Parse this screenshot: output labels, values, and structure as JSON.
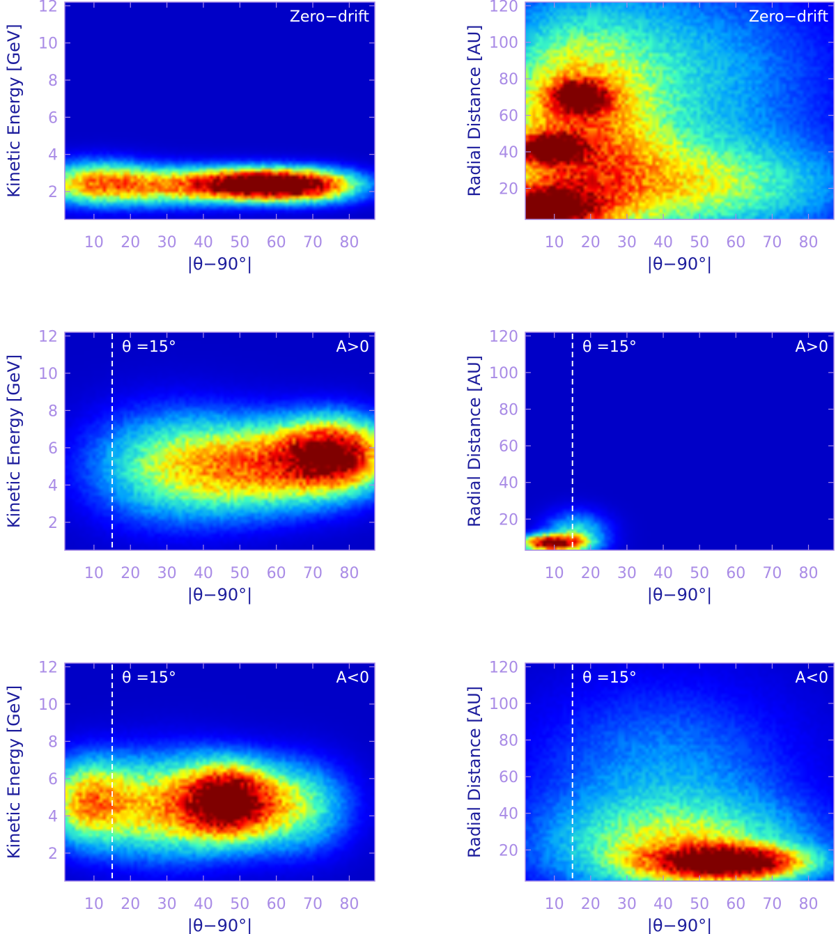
{
  "figure": {
    "colormap": [
      "#00007f",
      "#0000ff",
      "#00a0ff",
      "#40ffbf",
      "#ffff00",
      "#ff8000",
      "#ff0000",
      "#7f0000"
    ],
    "label_color": "#1c1c9c",
    "tick_color": "#a98be6",
    "marker_color": "#ffffff"
  },
  "chart_data": [
    {
      "type": "heatmap",
      "panel": "energy-zero-drift",
      "top_right": "Zero−drift",
      "top_left": "",
      "xlabel": "|θ−90°|",
      "ylabel": "Kinetic Energy [GeV]",
      "xlim": [
        2,
        87
      ],
      "ylim": [
        0.5,
        12.2
      ],
      "xticks": [
        10,
        20,
        30,
        40,
        50,
        60,
        70,
        80
      ],
      "yticks": [
        2,
        4,
        6,
        8,
        10,
        12
      ],
      "marker_x": null,
      "peaks": [
        {
          "x": 55,
          "y": 2.4,
          "amp": 1.0,
          "sx": 12,
          "sy": 0.55
        },
        {
          "x": 30,
          "y": 2.3,
          "amp": 0.55,
          "sx": 18,
          "sy": 0.7
        },
        {
          "x": 10,
          "y": 2.5,
          "amp": 0.45,
          "sx": 10,
          "sy": 0.8
        },
        {
          "x": 70,
          "y": 2.3,
          "amp": 0.6,
          "sx": 10,
          "sy": 0.6
        }
      ]
    },
    {
      "type": "heatmap",
      "panel": "radius-zero-drift",
      "top_right": "Zero−drift",
      "top_left": "",
      "xlabel": "|θ−90°|",
      "ylabel": "Radial Distance [AU]",
      "xlim": [
        2,
        87
      ],
      "ylim": [
        3,
        122
      ],
      "xticks": [
        10,
        20,
        30,
        40,
        50,
        60,
        70,
        80
      ],
      "yticks": [
        20,
        40,
        60,
        80,
        100,
        120
      ],
      "marker_x": null,
      "peaks": [
        {
          "x": 6,
          "y": 8,
          "amp": 1.0,
          "sx": 10,
          "sy": 8
        },
        {
          "x": 8,
          "y": 42,
          "amp": 0.85,
          "sx": 6,
          "sy": 5
        },
        {
          "x": 17,
          "y": 70,
          "amp": 0.75,
          "sx": 5,
          "sy": 6
        },
        {
          "x": 15,
          "y": 50,
          "amp": 0.55,
          "sx": 15,
          "sy": 40
        },
        {
          "x": 45,
          "y": 20,
          "amp": 0.45,
          "sx": 30,
          "sy": 18
        },
        {
          "x": 40,
          "y": 80,
          "amp": 0.3,
          "sx": 30,
          "sy": 40
        }
      ]
    },
    {
      "type": "heatmap",
      "panel": "energy-a-positive",
      "top_right": "A>0",
      "top_left": "θ  =15°",
      "xlabel": "|θ−90°|",
      "ylabel": "Kinetic Energy [GeV]",
      "xlim": [
        2,
        87
      ],
      "ylim": [
        0.5,
        12.2
      ],
      "xticks": [
        10,
        20,
        30,
        40,
        50,
        60,
        70,
        80
      ],
      "yticks": [
        2,
        4,
        6,
        8,
        10,
        12
      ],
      "marker_x": 15,
      "peaks": [
        {
          "x": 76,
          "y": 5.6,
          "amp": 1.0,
          "sx": 10,
          "sy": 1.3
        },
        {
          "x": 55,
          "y": 5.0,
          "amp": 0.6,
          "sx": 15,
          "sy": 1.6
        },
        {
          "x": 30,
          "y": 5.0,
          "amp": 0.4,
          "sx": 15,
          "sy": 2.0
        }
      ]
    },
    {
      "type": "heatmap",
      "panel": "radius-a-positive",
      "top_right": "A>0",
      "top_left": "θ  =15°",
      "xlabel": "|θ−90°|",
      "ylabel": "Radial Distance [AU]",
      "xlim": [
        2,
        87
      ],
      "ylim": [
        3,
        122
      ],
      "xticks": [
        10,
        20,
        30,
        40,
        50,
        60,
        70,
        80
      ],
      "yticks": [
        20,
        40,
        60,
        80,
        100,
        120
      ],
      "marker_x": 15,
      "peaks": [
        {
          "x": 9,
          "y": 7,
          "amp": 1.0,
          "sx": 6,
          "sy": 3
        },
        {
          "x": 16,
          "y": 12,
          "amp": 0.35,
          "sx": 6,
          "sy": 8
        }
      ]
    },
    {
      "type": "heatmap",
      "panel": "energy-a-negative",
      "top_right": "A<0",
      "top_left": "θ  =15°",
      "xlabel": "|θ−90°|",
      "ylabel": "Kinetic Energy [GeV]",
      "xlim": [
        2,
        87
      ],
      "ylim": [
        0.5,
        12.2
      ],
      "xticks": [
        10,
        20,
        30,
        40,
        50,
        60,
        70,
        80
      ],
      "yticks": [
        2,
        4,
        6,
        8,
        10,
        12
      ],
      "marker_x": 15,
      "peaks": [
        {
          "x": 47,
          "y": 4.8,
          "amp": 1.0,
          "sx": 8,
          "sy": 1.3
        },
        {
          "x": 30,
          "y": 4.5,
          "amp": 0.6,
          "sx": 14,
          "sy": 1.8
        },
        {
          "x": 8,
          "y": 4.8,
          "amp": 0.55,
          "sx": 8,
          "sy": 1.5
        },
        {
          "x": 65,
          "y": 4.5,
          "amp": 0.45,
          "sx": 10,
          "sy": 1.6
        }
      ]
    },
    {
      "type": "heatmap",
      "panel": "radius-a-negative",
      "top_right": "A<0",
      "top_left": "θ  =15°",
      "xlabel": "|θ−90°|",
      "ylabel": "Radial Distance [AU]",
      "xlim": [
        2,
        87
      ],
      "ylim": [
        3,
        122
      ],
      "xticks": [
        10,
        20,
        30,
        40,
        50,
        60,
        70,
        80
      ],
      "yticks": [
        20,
        40,
        60,
        80,
        100,
        120
      ],
      "marker_x": 15,
      "peaks": [
        {
          "x": 58,
          "y": 13,
          "amp": 1.0,
          "sx": 14,
          "sy": 6
        },
        {
          "x": 45,
          "y": 20,
          "amp": 0.45,
          "sx": 25,
          "sy": 18
        },
        {
          "x": 40,
          "y": 60,
          "amp": 0.22,
          "sx": 25,
          "sy": 35
        }
      ]
    }
  ]
}
